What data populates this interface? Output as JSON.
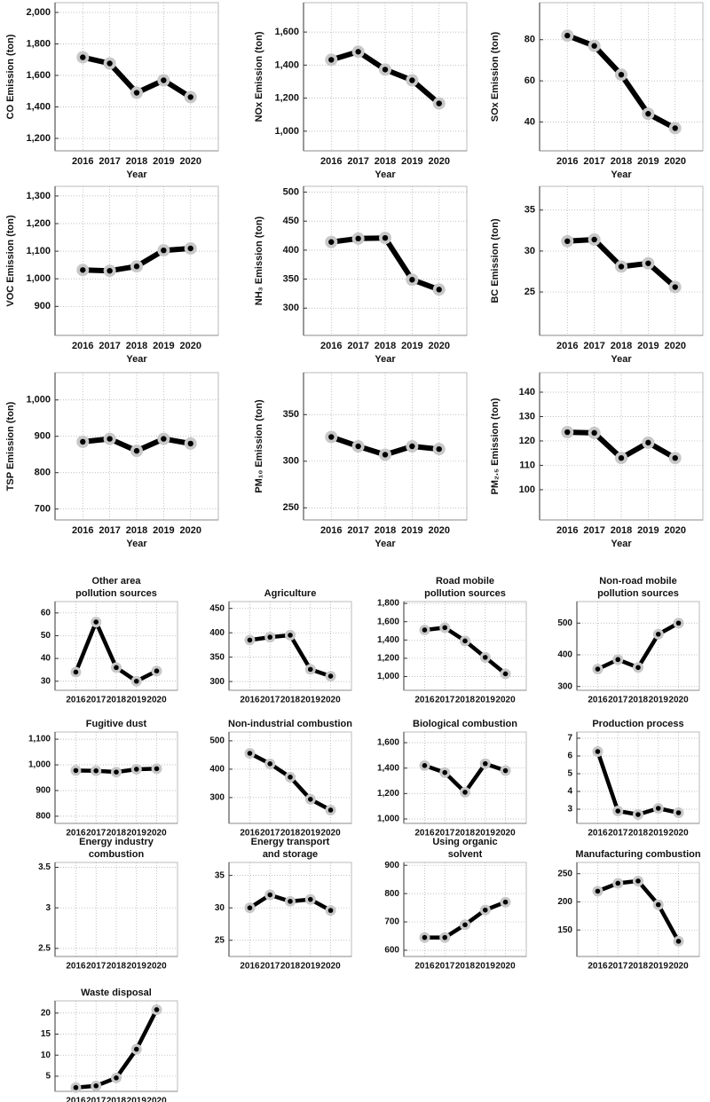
{
  "chart_data": [
    {
      "type": "line",
      "ylabel": "CO Emission (ton)",
      "xlabel": "Year",
      "categories": [
        "2016",
        "2017",
        "2018",
        "2019",
        "2020"
      ],
      "values": [
        1715,
        1676,
        1490,
        1569,
        1462
      ],
      "ylim": [
        1121,
        2062
      ],
      "yticks": [
        {
          "value": 1200,
          "label": "1,200"
        },
        {
          "value": 1400,
          "label": "1,400"
        },
        {
          "value": 1600,
          "label": "1,600"
        },
        {
          "value": 1800,
          "label": "1,800"
        },
        {
          "value": 2000,
          "label": "2,000"
        }
      ],
      "color": "#000000",
      "marker_color": "#c8c8c8",
      "grid": true
    },
    {
      "type": "line",
      "ylabel": "NOx Emission (ton)",
      "xlabel": "Year",
      "categories": [
        "2016",
        "2017",
        "2018",
        "2019",
        "2020"
      ],
      "values": [
        1432,
        1481,
        1373,
        1308,
        1168
      ],
      "ylim": [
        881,
        1778
      ],
      "yticks": [
        {
          "value": 1000,
          "label": "1,000"
        },
        {
          "value": 1200,
          "label": "1,200"
        },
        {
          "value": 1400,
          "label": "1,400"
        },
        {
          "value": 1600,
          "label": "1,600"
        }
      ],
      "color": "#000000",
      "marker_color": "#c8c8c8",
      "grid": true
    },
    {
      "type": "line",
      "ylabel": "SOx Emission (ton)",
      "xlabel": "Year",
      "categories": [
        "2016",
        "2017",
        "2018",
        "2019",
        "2020"
      ],
      "values": [
        82,
        77,
        63,
        44,
        37
      ],
      "ylim": [
        26,
        98
      ],
      "yticks": [
        40,
        60,
        80
      ],
      "color": "#000000",
      "marker_color": "#c8c8c8",
      "grid": true
    },
    {
      "type": "line",
      "ylabel": "VOC Emission (ton)",
      "xlabel": "Year",
      "categories": [
        "2016",
        "2017",
        "2018",
        "2019",
        "2020"
      ],
      "values": [
        1032,
        1029,
        1045,
        1103,
        1110
      ],
      "ylim": [
        795,
        1335
      ],
      "yticks": [
        900,
        {
          "value": 1000,
          "label": "1,000"
        },
        {
          "value": 1100,
          "label": "1,100"
        },
        {
          "value": 1200,
          "label": "1,200"
        },
        {
          "value": 1300,
          "label": "1,300"
        }
      ],
      "color": "#000000",
      "marker_color": "#c8c8c8",
      "grid": true
    },
    {
      "type": "line",
      "ylabel": "NH₃ Emission (ton)",
      "xlabel": "Year",
      "categories": [
        "2016",
        "2017",
        "2018",
        "2019",
        "2020"
      ],
      "values": [
        414,
        420,
        421,
        349,
        332
      ],
      "ylim": [
        253,
        510
      ],
      "yticks": [
        300,
        350,
        400,
        450,
        500
      ],
      "color": "#000000",
      "marker_color": "#c8c8c8",
      "grid": true
    },
    {
      "type": "line",
      "ylabel": "BC Emission (ton)",
      "xlabel": "Year",
      "categories": [
        "2016",
        "2017",
        "2018",
        "2019",
        "2020"
      ],
      "values": [
        31.2,
        31.4,
        28.1,
        28.5,
        25.6
      ],
      "ylim": [
        19.7,
        37.9
      ],
      "yticks": [
        25,
        30,
        35
      ],
      "color": "#000000",
      "marker_color": "#c8c8c8",
      "grid": true
    },
    {
      "type": "line",
      "ylabel": "TSP Emission (ton)",
      "xlabel": "Year",
      "categories": [
        "2016",
        "2017",
        "2018",
        "2019",
        "2020"
      ],
      "values": [
        885,
        893,
        860,
        893,
        880
      ],
      "ylim": [
        670,
        1075
      ],
      "yticks": [
        700,
        800,
        900,
        {
          "value": 1000,
          "label": "1,000"
        }
      ],
      "color": "#000000",
      "marker_color": "#c8c8c8",
      "grid": true
    },
    {
      "type": "line",
      "ylabel": "PM₁₀ Emission (ton)",
      "xlabel": "Year",
      "categories": [
        "2016",
        "2017",
        "2018",
        "2019",
        "2020"
      ],
      "values": [
        326,
        316,
        307,
        316,
        313
      ],
      "ylim": [
        237,
        395
      ],
      "yticks": [
        250,
        300,
        350
      ],
      "color": "#000000",
      "marker_color": "#c8c8c8",
      "grid": true
    },
    {
      "type": "line",
      "ylabel": "PM₂.₅ Emission (ton)",
      "xlabel": "Year",
      "categories": [
        "2016",
        "2017",
        "2018",
        "2019",
        "2020"
      ],
      "values": [
        123.6,
        123.3,
        113,
        119.3,
        113
      ],
      "ylim": [
        87.6,
        148
      ],
      "yticks": [
        100,
        110,
        120,
        130,
        140
      ],
      "color": "#000000",
      "marker_color": "#c8c8c8",
      "grid": true
    },
    {
      "type": "line",
      "title": [
        "Other area",
        "pollution sources"
      ],
      "categories": [
        "2016",
        "2017",
        "2018",
        "2019",
        "2020"
      ],
      "values": [
        34,
        56,
        36,
        30,
        34.5
      ],
      "ylim": [
        26,
        65
      ],
      "yticks": [
        30,
        40,
        50,
        60
      ],
      "color": "#000000",
      "marker_color": "#c8c8c8",
      "grid": true
    },
    {
      "type": "line",
      "title": [
        "Agriculture"
      ],
      "categories": [
        "2016",
        "2017",
        "2018",
        "2019",
        "2020"
      ],
      "values": [
        385,
        391,
        395,
        325,
        311
      ],
      "ylim": [
        282,
        464
      ],
      "yticks": [
        300,
        350,
        400,
        450
      ],
      "color": "#000000",
      "marker_color": "#c8c8c8",
      "grid": true
    },
    {
      "type": "line",
      "title": [
        "Road mobile",
        "pollution sources"
      ],
      "categories": [
        "2016",
        "2017",
        "2018",
        "2019",
        "2020"
      ],
      "values": [
        1510,
        1535,
        1390,
        1210,
        1030
      ],
      "ylim": [
        850,
        1820
      ],
      "yticks": [
        {
          "value": 1000,
          "label": "1,000"
        },
        {
          "value": 1200,
          "label": "1,200"
        },
        {
          "value": 1400,
          "label": "1,400"
        },
        {
          "value": 1600,
          "label": "1,600"
        },
        {
          "value": 1800,
          "label": "1,800"
        }
      ],
      "color": "#000000",
      "marker_color": "#c8c8c8",
      "grid": true
    },
    {
      "type": "line",
      "title": [
        "Non-road mobile",
        "pollution sources"
      ],
      "categories": [
        "2016",
        "2017",
        "2018",
        "2019",
        "2020"
      ],
      "values": [
        355,
        385,
        360,
        465,
        500
      ],
      "ylim": [
        288,
        568
      ],
      "yticks": [
        300,
        400,
        500
      ],
      "color": "#000000",
      "marker_color": "#c8c8c8",
      "grid": true
    },
    {
      "type": "line",
      "title": [
        "Fugitive dust"
      ],
      "categories": [
        "2016",
        "2017",
        "2018",
        "2019",
        "2020"
      ],
      "values": [
        978,
        977,
        972,
        983,
        985
      ],
      "ylim": [
        772,
        1128
      ],
      "yticks": [
        800,
        900,
        {
          "value": 1000,
          "label": "1,000"
        },
        {
          "value": 1100,
          "label": "1,100"
        }
      ],
      "color": "#000000",
      "marker_color": "#c8c8c8",
      "grid": true
    },
    {
      "type": "line",
      "title": [
        "Non-industrial combustion"
      ],
      "categories": [
        "2016",
        "2017",
        "2018",
        "2019",
        "2020"
      ],
      "values": [
        456,
        419,
        372,
        294,
        256
      ],
      "ylim": [
        209,
        531
      ],
      "yticks": [
        300,
        400,
        500
      ],
      "color": "#000000",
      "marker_color": "#c8c8c8",
      "grid": true
    },
    {
      "type": "line",
      "title": [
        "Biological combustion"
      ],
      "categories": [
        "2016",
        "2017",
        "2018",
        "2019",
        "2020"
      ],
      "values": [
        1420,
        1365,
        1210,
        1435,
        1380
      ],
      "ylim": [
        965,
        1684
      ],
      "yticks": [
        {
          "value": 1000,
          "label": "1,000"
        },
        {
          "value": 1200,
          "label": "1,200"
        },
        {
          "value": 1400,
          "label": "1,400"
        },
        {
          "value": 1600,
          "label": "1,600"
        }
      ],
      "color": "#000000",
      "marker_color": "#c8c8c8",
      "grid": true
    },
    {
      "type": "line",
      "title": [
        "Production process"
      ],
      "categories": [
        "2016",
        "2017",
        "2018",
        "2019",
        "2020"
      ],
      "values": [
        6.25,
        2.9,
        2.7,
        3.05,
        2.8
      ],
      "ylim": [
        2.2,
        7.35
      ],
      "yticks": [
        3,
        4,
        5,
        6,
        7
      ],
      "color": "#000000",
      "marker_color": "#c8c8c8",
      "grid": true
    },
    {
      "type": "line",
      "title": [
        "Energy industry",
        "combustion"
      ],
      "categories": [
        "2016",
        "2017",
        "2018",
        "2019",
        "2020"
      ],
      "values": [
        null,
        null,
        null,
        null,
        null
      ],
      "ylim": [
        2.4,
        3.56
      ],
      "yticks": [
        2.5,
        3,
        3.5
      ],
      "color": "#000000",
      "marker_color": "#c8c8c8",
      "grid": true
    },
    {
      "type": "line",
      "title": [
        "Energy transport",
        "and storage"
      ],
      "categories": [
        "2016",
        "2017",
        "2018",
        "2019",
        "2020"
      ],
      "values": [
        30,
        32,
        31,
        31.3,
        29.6
      ],
      "ylim": [
        22.5,
        37
      ],
      "yticks": [
        25,
        30,
        35
      ],
      "color": "#000000",
      "marker_color": "#c8c8c8",
      "grid": true
    },
    {
      "type": "line",
      "title": [
        "Using organic",
        "solvent"
      ],
      "categories": [
        "2016",
        "2017",
        "2018",
        "2019",
        "2020"
      ],
      "values": [
        645,
        645,
        690,
        742,
        770
      ],
      "ylim": [
        578,
        910
      ],
      "yticks": [
        600,
        700,
        800,
        900
      ],
      "color": "#000000",
      "marker_color": "#c8c8c8",
      "grid": true
    },
    {
      "type": "line",
      "title": [
        "Manufacturing combustion"
      ],
      "categories": [
        "2016",
        "2017",
        "2018",
        "2019",
        "2020"
      ],
      "values": [
        219,
        233,
        237,
        195,
        130
      ],
      "ylim": [
        103,
        270
      ],
      "yticks": [
        150,
        200,
        250
      ],
      "color": "#000000",
      "marker_color": "#c8c8c8",
      "grid": true
    },
    {
      "type": "line",
      "title": [
        "Waste disposal"
      ],
      "categories": [
        "2016",
        "2017",
        "2018",
        "2019",
        "2020"
      ],
      "values": [
        2.3,
        2.7,
        4.6,
        11.4,
        20.8
      ],
      "ylim": [
        1.4,
        22.9
      ],
      "yticks": [
        5,
        10,
        15,
        20
      ],
      "color": "#000000",
      "marker_color": "#c8c8c8",
      "grid": true
    }
  ]
}
